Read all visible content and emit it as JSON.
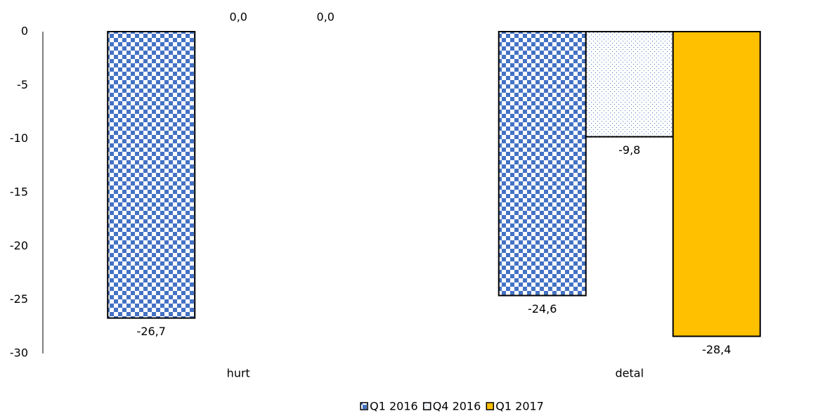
{
  "chart_data": {
    "type": "bar",
    "categories": [
      "hurt",
      "detal"
    ],
    "series": [
      {
        "name": "Q1 2016",
        "color": "#4472c4",
        "pattern": "checker",
        "values": [
          -26.7,
          -24.6
        ],
        "value_labels": [
          "-26,7",
          "-24,6"
        ]
      },
      {
        "name": "Q4 2016",
        "color": "#4472c4",
        "pattern": "dots",
        "values": [
          0.0,
          -9.8
        ],
        "value_labels": [
          "0,0",
          "-9,8"
        ]
      },
      {
        "name": "Q1 2017",
        "color": "#ffc000",
        "pattern": "solid",
        "values": [
          0.0,
          -28.4
        ],
        "value_labels": [
          "0,0",
          "-28,4"
        ]
      }
    ],
    "ylim": [
      -30,
      0
    ],
    "yticks": [
      0,
      -5,
      -10,
      -15,
      -20,
      -25,
      -30
    ],
    "grid": false,
    "legend": "bottom"
  }
}
